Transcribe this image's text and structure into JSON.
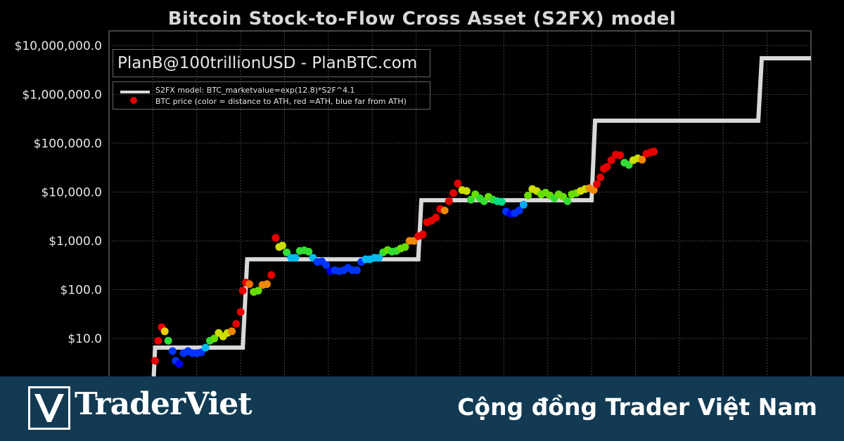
{
  "chart_data": {
    "type": "line",
    "title": "Bitcoin Stock-to-Flow Cross Asset (S2FX) model",
    "yscale": "log",
    "ylim": [
      1.0,
      20000000
    ],
    "y_ticks": [
      "$10.0",
      "$100.0",
      "$1,000.0",
      "$10,000.0",
      "$100,000.0",
      "$1,000,000.0",
      "$10,000,000.0"
    ],
    "y_tick_values": [
      10,
      100,
      1000,
      10000,
      100000,
      1000000,
      10000000
    ],
    "x_range": [
      2009.0,
      2025.0
    ],
    "x_tick_values": [
      2010,
      2011,
      2012,
      2013,
      2014,
      2015,
      2016,
      2017,
      2018,
      2019,
      2020,
      2021,
      2022,
      2023,
      2024
    ],
    "credit": "PlanB@100trillionUSD  -  PlanBTC.com",
    "legend": "top-left",
    "series": [
      {
        "name": "S2FX model: BTC_marketvalue=exp(12.8)*S2F^4.1",
        "color": "#d9d9d9",
        "points": [
          [
            2010.0,
            0.5
          ],
          [
            2010.05,
            6.5
          ],
          [
            2011.5,
            6.5
          ],
          [
            2012.05,
            6.5
          ],
          [
            2012.15,
            420
          ],
          [
            2014.0,
            420
          ],
          [
            2016.05,
            420
          ],
          [
            2016.12,
            6800
          ],
          [
            2019.0,
            6800
          ],
          [
            2020.0,
            6800
          ],
          [
            2020.08,
            290000
          ],
          [
            2023.8,
            290000
          ],
          [
            2023.88,
            5500000
          ],
          [
            2025.0,
            5500000
          ]
        ]
      },
      {
        "name": "BTC price (color = distance to ATH, red =ATH, blue far from ATH)",
        "points": [
          [
            2010.05,
            3.5,
            "#e60000"
          ],
          [
            2010.12,
            9,
            "#e60000"
          ],
          [
            2010.2,
            17,
            "#e60000"
          ],
          [
            2010.27,
            14,
            "#f0d000"
          ],
          [
            2010.35,
            9,
            "#33dd33"
          ],
          [
            2010.45,
            5.5,
            "#0033ff"
          ],
          [
            2010.52,
            3.5,
            "#0033ff"
          ],
          [
            2010.6,
            3.0,
            "#0000ee"
          ],
          [
            2010.7,
            5,
            "#0033ff"
          ],
          [
            2010.8,
            5.5,
            "#0033ff"
          ],
          [
            2010.9,
            5,
            "#0033ff"
          ],
          [
            2011.0,
            5,
            "#0033ff"
          ],
          [
            2011.1,
            5.2,
            "#0033ff"
          ],
          [
            2011.2,
            6.5,
            "#00bbee"
          ],
          [
            2011.3,
            9,
            "#33dd33"
          ],
          [
            2011.4,
            10,
            "#66dd00"
          ],
          [
            2011.5,
            13,
            "#ccdd00"
          ],
          [
            2011.6,
            11,
            "#ccdd00"
          ],
          [
            2011.7,
            13,
            "#ccdd00"
          ],
          [
            2011.8,
            14,
            "#ee8800"
          ],
          [
            2011.9,
            20,
            "#e60000"
          ],
          [
            2012.0,
            35,
            "#e60000"
          ],
          [
            2012.05,
            95,
            "#e60000"
          ],
          [
            2012.12,
            140,
            "#e60000"
          ],
          [
            2012.2,
            130,
            "#f07000"
          ],
          [
            2012.3,
            90,
            "#66dd00"
          ],
          [
            2012.4,
            95,
            "#66dd00"
          ],
          [
            2012.5,
            125,
            "#ee8800"
          ],
          [
            2012.6,
            130,
            "#ee8800"
          ],
          [
            2012.7,
            200,
            "#e60000"
          ],
          [
            2012.8,
            1150,
            "#e60000"
          ],
          [
            2012.88,
            750,
            "#ccdd00"
          ],
          [
            2012.95,
            800,
            "#ccdd00"
          ],
          [
            2013.05,
            580,
            "#33dd33"
          ],
          [
            2013.15,
            450,
            "#00bbee"
          ],
          [
            2013.25,
            450,
            "#00bbee"
          ],
          [
            2013.35,
            620,
            "#33dd33"
          ],
          [
            2013.45,
            640,
            "#33dd33"
          ],
          [
            2013.55,
            600,
            "#33dd33"
          ],
          [
            2013.65,
            450,
            "#00bbee"
          ],
          [
            2013.75,
            370,
            "#0033ff"
          ],
          [
            2013.85,
            380,
            "#0033ff"
          ],
          [
            2013.95,
            320,
            "#0033ff"
          ],
          [
            2014.05,
            240,
            "#0000ee"
          ],
          [
            2014.15,
            250,
            "#0033ff"
          ],
          [
            2014.25,
            240,
            "#0033ff"
          ],
          [
            2014.35,
            250,
            "#0033ff"
          ],
          [
            2014.45,
            280,
            "#0033ff"
          ],
          [
            2014.55,
            250,
            "#0033ff"
          ],
          [
            2014.65,
            250,
            "#0033ff"
          ],
          [
            2014.75,
            370,
            "#0033ff"
          ],
          [
            2014.85,
            420,
            "#00bbee"
          ],
          [
            2014.95,
            420,
            "#00bbee"
          ],
          [
            2015.05,
            450,
            "#00bbee"
          ],
          [
            2015.15,
            450,
            "#00bbee"
          ],
          [
            2015.25,
            580,
            "#33dd33"
          ],
          [
            2015.35,
            650,
            "#66dd00"
          ],
          [
            2015.45,
            600,
            "#33dd33"
          ],
          [
            2015.55,
            620,
            "#33dd33"
          ],
          [
            2015.65,
            700,
            "#66dd00"
          ],
          [
            2015.75,
            750,
            "#66dd00"
          ],
          [
            2015.85,
            1000,
            "#ee8800"
          ],
          [
            2015.95,
            1000,
            "#ee8800"
          ],
          [
            2016.05,
            1250,
            "#e60000"
          ],
          [
            2016.15,
            1350,
            "#e60000"
          ],
          [
            2016.25,
            2400,
            "#e60000"
          ],
          [
            2016.35,
            2600,
            "#e60000"
          ],
          [
            2016.45,
            3000,
            "#e60000"
          ],
          [
            2016.55,
            4500,
            "#e60000"
          ],
          [
            2016.65,
            4200,
            "#ee8800"
          ],
          [
            2016.75,
            6500,
            "#e60000"
          ],
          [
            2016.85,
            9500,
            "#e60000"
          ],
          [
            2016.95,
            15000,
            "#e60000"
          ],
          [
            2017.05,
            11000,
            "#ccdd00"
          ],
          [
            2017.15,
            10500,
            "#ccdd00"
          ],
          [
            2017.25,
            7000,
            "#33dd33"
          ],
          [
            2017.35,
            9000,
            "#66dd00"
          ],
          [
            2017.45,
            7500,
            "#33dd33"
          ],
          [
            2017.55,
            6500,
            "#33dd33"
          ],
          [
            2017.65,
            8000,
            "#66dd00"
          ],
          [
            2017.75,
            7000,
            "#33dd33"
          ],
          [
            2017.85,
            6500,
            "#00dd88"
          ],
          [
            2017.95,
            6300,
            "#00dd88"
          ],
          [
            2018.05,
            4000,
            "#0033ff"
          ],
          [
            2018.15,
            3600,
            "#0000ee"
          ],
          [
            2018.25,
            3700,
            "#0033ff"
          ],
          [
            2018.35,
            4200,
            "#0033ff"
          ],
          [
            2018.45,
            5500,
            "#00aaee"
          ],
          [
            2018.55,
            8500,
            "#66dd00"
          ],
          [
            2018.65,
            11500,
            "#ccdd00"
          ],
          [
            2018.75,
            10500,
            "#ccdd00"
          ],
          [
            2018.85,
            9000,
            "#66dd00"
          ],
          [
            2018.95,
            9700,
            "#66dd00"
          ],
          [
            2019.05,
            8500,
            "#66dd00"
          ],
          [
            2019.15,
            7500,
            "#33dd33"
          ],
          [
            2019.25,
            9000,
            "#66dd00"
          ],
          [
            2019.35,
            8000,
            "#66dd00"
          ],
          [
            2019.45,
            6500,
            "#33dd33"
          ],
          [
            2019.55,
            9000,
            "#66dd00"
          ],
          [
            2019.65,
            9500,
            "#66dd00"
          ],
          [
            2019.75,
            10500,
            "#ccdd00"
          ],
          [
            2019.85,
            11500,
            "#ccdd00"
          ],
          [
            2019.95,
            12000,
            "#ee8800"
          ],
          [
            2020.05,
            11000,
            "#ee8800"
          ],
          [
            2020.12,
            14500,
            "#e60000"
          ],
          [
            2020.2,
            20000,
            "#e60000"
          ],
          [
            2020.28,
            30000,
            "#e60000"
          ],
          [
            2020.35,
            33000,
            "#e60000"
          ],
          [
            2020.45,
            45000,
            "#e60000"
          ],
          [
            2020.55,
            58000,
            "#e60000"
          ],
          [
            2020.65,
            57000,
            "#e60000"
          ],
          [
            2020.75,
            40000,
            "#33dd33"
          ],
          [
            2020.85,
            36000,
            "#33dd33"
          ],
          [
            2020.95,
            45000,
            "#ccdd00"
          ],
          [
            2021.05,
            49000,
            "#ccdd00"
          ],
          [
            2021.15,
            46000,
            "#ee8800"
          ],
          [
            2021.25,
            61000,
            "#e60000"
          ],
          [
            2021.35,
            65000,
            "#e60000"
          ],
          [
            2021.42,
            68000,
            "#e60000"
          ]
        ]
      }
    ]
  },
  "banner": {
    "logo_text": "TraderViet",
    "tagline": "Cộng đồng Trader Việt Nam"
  }
}
